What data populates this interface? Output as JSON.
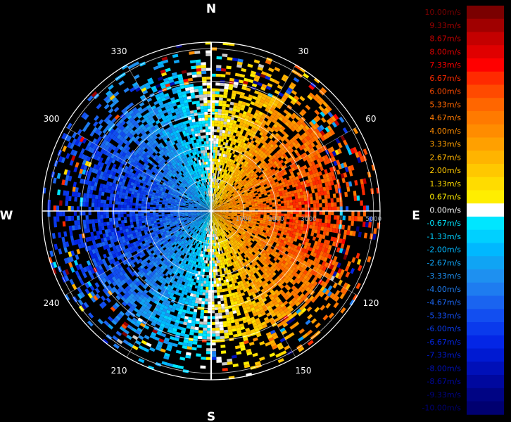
{
  "chart_data": {
    "type": "heatmap",
    "projection": "polar",
    "cardinals": {
      "north": "N",
      "south": "S",
      "east": "E",
      "west": "W"
    },
    "azimuth_ticks": [
      "30",
      "60",
      "120",
      "150",
      "210",
      "240",
      "300",
      "330"
    ],
    "range_ticks": [
      "1000",
      "2000",
      "3000",
      "4000",
      "5000"
    ],
    "range_label_visible": [
      "1000",
      "2000",
      "3000",
      "5000"
    ],
    "rlim": [
      0,
      5200
    ],
    "grid": true,
    "colorbar": {
      "placement": "right",
      "labels": [
        "10.00m/s",
        "9.33m/s",
        "8.67m/s",
        "8.00m/s",
        "7.33m/s",
        "6.67m/s",
        "6.00m/s",
        "5.33m/s",
        "4.67m/s",
        "4.00m/s",
        "3.33m/s",
        "2.67m/s",
        "2.00m/s",
        "1.33m/s",
        "0.67m/s",
        "0.00m/s",
        "-0.67m/s",
        "-1.33m/s",
        "-2.00m/s",
        "-2.67m/s",
        "-3.33m/s",
        "-4.00m/s",
        "-4.67m/s",
        "-5.33m/s",
        "-6.00m/s",
        "-6.67m/s",
        "-7.33m/s",
        "-8.00m/s",
        "-8.67m/s",
        "-9.33m/s",
        "-10.00m/s"
      ],
      "values": [
        10.0,
        9.33,
        8.67,
        8.0,
        7.33,
        6.67,
        6.0,
        5.33,
        4.67,
        4.0,
        3.33,
        2.67,
        2.0,
        1.33,
        0.67,
        0.0,
        -0.67,
        -1.33,
        -2.0,
        -2.67,
        -3.33,
        -4.0,
        -4.67,
        -5.33,
        -6.0,
        -6.67,
        -7.33,
        -8.0,
        -8.67,
        -9.33,
        -10.0
      ],
      "colors": [
        "#7a0000",
        "#a00000",
        "#c40000",
        "#e00000",
        "#ff0000",
        "#ff2a00",
        "#ff4a00",
        "#ff6600",
        "#ff7a00",
        "#ff8c00",
        "#ffa000",
        "#ffb400",
        "#ffc800",
        "#ffdc00",
        "#ffee00",
        "#ffffff",
        "#00e6ff",
        "#00d0ff",
        "#00b8ff",
        "#10a4f4",
        "#1e90f0",
        "#1e7cf0",
        "#1a64f0",
        "#124ef0",
        "#0a3aec",
        "#0426e6",
        "#001ad2",
        "#0010b8",
        "#00089e",
        "#000484",
        "#000070"
      ]
    },
    "velocity_field": {
      "description_free": true,
      "pattern": "dipole",
      "east_half_sign": "positive",
      "west_half_sign": "negative",
      "max_abs_velocity": 6.0,
      "core_range_m": 4000,
      "max_range_m": 5200
    }
  }
}
